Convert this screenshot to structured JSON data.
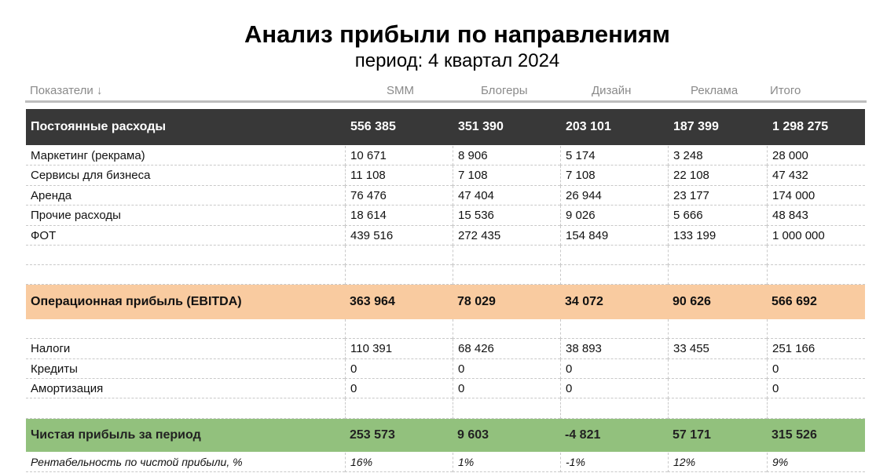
{
  "title": "Анализ прибыли по направлениям",
  "subtitle": "период: 4 квартал 2024",
  "columns": [
    "Показатели ↓",
    "SMM",
    "Блогеры",
    "Дизайн",
    "Реклама",
    "Итого"
  ],
  "rows": {
    "fixed_costs": {
      "label": "Постоянные расходы",
      "v": [
        "556 385",
        "351 390",
        "203 101",
        "187 399",
        "1 298 275"
      ]
    },
    "marketing": {
      "label": "Маркетинг (рекрама)",
      "v": [
        "10 671",
        "8 906",
        "5 174",
        "3 248",
        "28 000"
      ]
    },
    "services": {
      "label": "Сервисы для бизнеса",
      "v": [
        "11 108",
        "7 108",
        "7 108",
        "22 108",
        "47 432"
      ]
    },
    "rent": {
      "label": "Аренда",
      "v": [
        "76 476",
        "47 404",
        "26 944",
        "23 177",
        "174 000"
      ]
    },
    "other": {
      "label": "Прочие расходы",
      "v": [
        "18 614",
        "15 536",
        "9 026",
        "5 666",
        "48 843"
      ]
    },
    "payroll": {
      "label": "ФОТ",
      "v": [
        "439 516",
        "272 435",
        "154 849",
        "133 199",
        "1 000 000"
      ]
    },
    "ebitda": {
      "label": "Операционная прибыль (EBITDA)",
      "v": [
        "363 964",
        "78 029",
        "34 072",
        "90 626",
        "566 692"
      ]
    },
    "taxes": {
      "label": "Налоги",
      "v": [
        "110 391",
        "68 426",
        "38 893",
        "33 455",
        "251 166"
      ]
    },
    "credits": {
      "label": "Кредиты",
      "v": [
        "0",
        "0",
        "0",
        "",
        "0"
      ]
    },
    "amortization": {
      "label": "Амортизация",
      "v": [
        "0",
        "0",
        "0",
        "",
        "0"
      ]
    },
    "net_profit": {
      "label": "Чистая прибыль за период",
      "v": [
        "253 573",
        "9 603",
        "-4 821",
        "57 171",
        "315 526"
      ]
    },
    "margin": {
      "label": "Рентабельность по чистой прибыли, %",
      "v": [
        "16%",
        "1%",
        "-1%",
        "12%",
        "9%"
      ]
    }
  },
  "colors": {
    "dark_header": "#383838",
    "ebitda_fill": "#f9cba0",
    "net_profit_fill": "#92c17d"
  }
}
